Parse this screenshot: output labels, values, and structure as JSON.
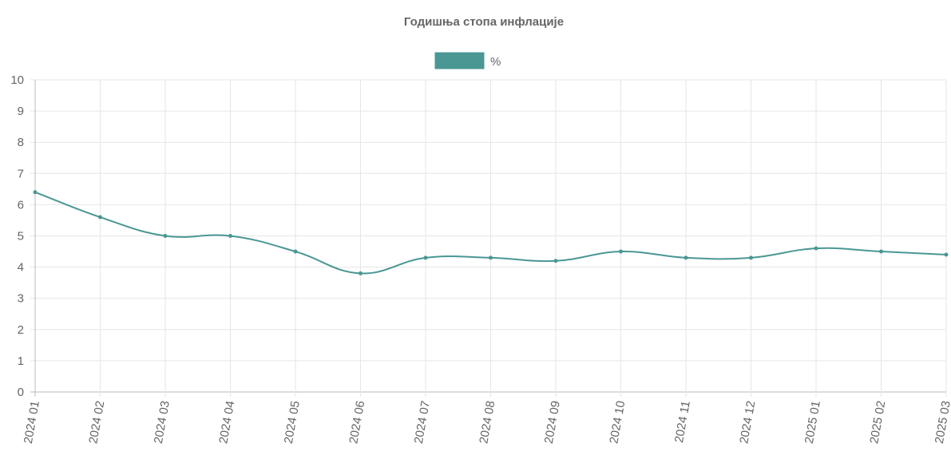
{
  "chart_data": {
    "type": "line",
    "title": "Годишња стопа инфлације",
    "xlabel": "",
    "ylabel": "",
    "categories": [
      "2024 01",
      "2024 02",
      "2024 03",
      "2024 04",
      "2024 05",
      "2024 06",
      "2024 07",
      "2024 08",
      "2024 09",
      "2024 10",
      "2024 11",
      "2024 12",
      "2025 01",
      "2025 02",
      "2025 03"
    ],
    "series": [
      {
        "name": "%",
        "values": [
          6.4,
          5.6,
          5.0,
          5.0,
          4.5,
          3.8,
          4.3,
          4.3,
          4.2,
          4.5,
          4.3,
          4.3,
          4.6,
          4.5,
          4.4
        ],
        "color": "#4a9794"
      }
    ],
    "ylim": [
      0,
      10
    ],
    "yticks": [
      0,
      1,
      2,
      3,
      4,
      5,
      6,
      7,
      8,
      9,
      10
    ],
    "grid": true,
    "legend": "top-center"
  }
}
